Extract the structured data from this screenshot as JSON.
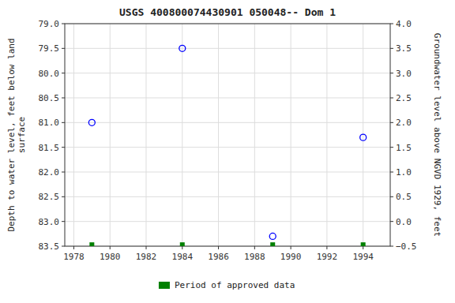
{
  "chart_data": {
    "type": "scatter",
    "title": "USGS 400800074430901 050048-- Dom 1",
    "y_label": "Depth to water level, feet below land\nsurface",
    "y2_label": "Groundwater level above NGVD 1929, feet",
    "xlim": [
      1977.5,
      1995.5
    ],
    "xticks": [
      1978,
      1980,
      1982,
      1984,
      1986,
      1988,
      1990,
      1992,
      1994
    ],
    "ylim": [
      83.5,
      79.0
    ],
    "yticks": [
      {
        "value": 79.0,
        "label": "79.0"
      },
      79.5,
      {
        "value": 80.0,
        "label": "80.0"
      },
      80.5,
      {
        "value": 81.0,
        "label": "81.0"
      },
      81.5,
      {
        "value": 82.0,
        "label": "82.0"
      },
      82.5,
      {
        "value": 83.0,
        "label": "83.0"
      },
      83.5
    ],
    "y2lim": [
      -0.5,
      4.0
    ],
    "y2ticks": [
      {
        "value": 4.0,
        "label": "4.0"
      },
      3.5,
      {
        "value": 3.0,
        "label": "3.0"
      },
      2.5,
      {
        "value": 2.0,
        "label": "2.0"
      },
      1.5,
      {
        "value": 1.0,
        "label": "1.0"
      },
      0.5,
      {
        "value": 0.0,
        "label": "0.0"
      },
      {
        "value": -0.5,
        "label": "−0.5"
      }
    ],
    "grid": true,
    "legend": "bottom",
    "series": [
      {
        "color": "blue",
        "marker": "open-circle",
        "x": [
          1979,
          1984,
          1989,
          1994
        ],
        "values": [
          81.0,
          79.5,
          83.3,
          81.3
        ]
      },
      {
        "name": "Period of approved data",
        "color": "#008000",
        "marker": "square",
        "x": [
          1979,
          1984,
          1989,
          1994
        ],
        "values": [
          83.47,
          83.47,
          83.47,
          83.47
        ]
      }
    ]
  }
}
